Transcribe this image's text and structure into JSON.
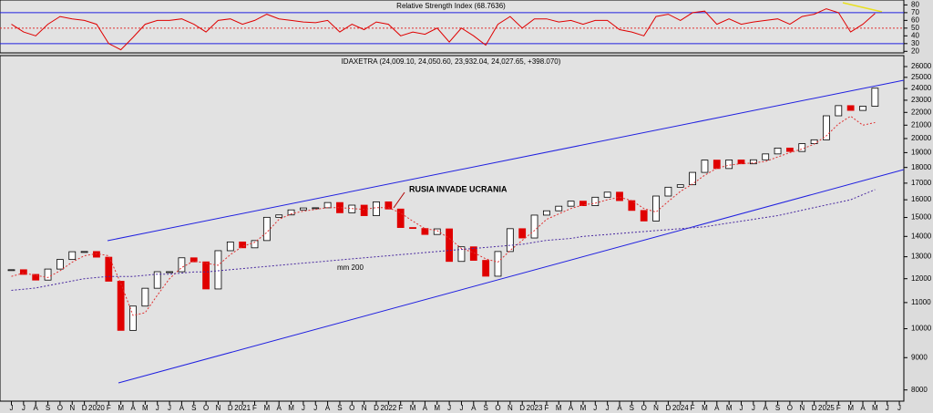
{
  "chart_data": [
    {
      "type": "line",
      "title": "Relative Strength Index (68.7636)",
      "ylim": [
        18,
        84
      ],
      "yticks": [
        20,
        30,
        40,
        50,
        60,
        70,
        80
      ],
      "levels": [
        {
          "value": 70,
          "color": "#2020e0"
        },
        {
          "value": 50,
          "color": "#e03030"
        },
        {
          "value": 30,
          "color": "#2020e0"
        }
      ],
      "series": [
        {
          "color": "#e00000",
          "values": [
            55,
            45,
            40,
            55,
            65,
            62,
            60,
            55,
            30,
            22,
            38,
            55,
            60,
            60,
            62,
            55,
            45,
            60,
            62,
            55,
            60,
            68,
            62,
            60,
            58,
            57,
            60,
            45,
            55,
            48,
            58,
            55,
            40,
            45,
            42,
            50,
            32,
            50,
            40,
            28,
            55,
            65,
            50,
            62,
            62,
            58,
            60,
            55,
            60,
            60,
            48,
            45,
            40,
            65,
            68,
            60,
            70,
            72,
            55,
            62,
            55,
            58,
            60,
            62,
            55,
            65,
            68,
            75,
            70,
            45,
            55,
            69,
            null,
            null
          ]
        }
      ]
    },
    {
      "type": "candlestick",
      "title": "IDAXETRA (24,009.10, 24,050.60, 23,932.04, 24,027.65, +398.070)",
      "categories": [
        "J",
        "J",
        "A",
        "S",
        "O",
        "N",
        "D",
        "2020",
        "F",
        "M",
        "A",
        "M",
        "J",
        "J",
        "A",
        "S",
        "O",
        "N",
        "D",
        "2021",
        "F",
        "M",
        "A",
        "M",
        "J",
        "J",
        "A",
        "S",
        "O",
        "N",
        "D",
        "2022",
        "F",
        "M",
        "A",
        "M",
        "J",
        "J",
        "A",
        "S",
        "O",
        "N",
        "D",
        "2023",
        "F",
        "M",
        "A",
        "M",
        "J",
        "J",
        "A",
        "S",
        "O",
        "N",
        "D",
        "2024",
        "F",
        "M",
        "A",
        "M",
        "J",
        "J",
        "A",
        "S",
        "O",
        "N",
        "D",
        "2025",
        "F",
        "M",
        "A",
        "M",
        "J",
        "J"
      ],
      "log_scale": true,
      "ylim": [
        7680,
        26970
      ],
      "yticks": [
        8000,
        9000,
        10000,
        11000,
        12000,
        13000,
        14000,
        15000,
        16000,
        17000,
        18000,
        19000,
        20000,
        21000,
        22000,
        23000,
        24000,
        25000,
        26000
      ],
      "series": [
        {
          "color": "#000000",
          "down_color": "#e00000",
          "values": [
            12400,
            12190,
            11940,
            12430,
            12870,
            13240,
            13250,
            12980,
            11890,
            9940,
            10860,
            11590,
            12310,
            12310,
            12950,
            12760,
            11560,
            13290,
            13720,
            13430,
            13790,
            15010,
            15140,
            15420,
            15530,
            15540,
            15840,
            15260,
            15690,
            15100,
            15880,
            15470,
            14460,
            14410,
            14100,
            14390,
            12780,
            13480,
            12830,
            12110,
            13250,
            14400,
            13920,
            15130,
            15370,
            15630,
            15920,
            15660,
            16150,
            16450,
            15950,
            15390,
            14810,
            16220,
            16750,
            16900,
            17680,
            18490,
            17930,
            18500,
            18240,
            18510,
            18910,
            19320,
            19080,
            19630,
            19910,
            21730,
            22550,
            22160,
            22500,
            24030,
            null,
            null
          ]
        },
        {
          "color": "#e03030",
          "style": "dotted",
          "values": [
            12100,
            12250,
            12150,
            12050,
            12350,
            12750,
            13050,
            13150,
            13050,
            11800,
            10500,
            10600,
            11300,
            12000,
            12500,
            12800,
            12700,
            12600,
            13100,
            13500,
            13700,
            14200,
            14900,
            15200,
            15350,
            15450,
            15550,
            15550,
            15500,
            15450,
            15550,
            15550,
            15250,
            14800,
            14400,
            14300,
            13900,
            13400,
            13200,
            12900,
            12750,
            13300,
            13800,
            14300,
            14900,
            15200,
            15500,
            15700,
            15800,
            16000,
            16150,
            15950,
            15500,
            15300,
            15900,
            16500,
            16950,
            17500,
            17950,
            18150,
            18250,
            18300,
            18400,
            18700,
            19000,
            19250,
            19600,
            20200,
            21100,
            21700,
            21000,
            21200,
            null,
            null
          ]
        },
        {
          "name": "mm 200",
          "color": "#4a2aa0",
          "style": "dotted",
          "values": [
            11500,
            11550,
            11600,
            11700,
            11800,
            11900,
            12000,
            12050,
            12100,
            12100,
            12100,
            12150,
            12200,
            12200,
            12250,
            12300,
            12300,
            12350,
            12400,
            12450,
            12500,
            12550,
            12600,
            12650,
            12700,
            12750,
            12800,
            12850,
            12900,
            12950,
            13000,
            13050,
            13100,
            13150,
            13200,
            13250,
            13300,
            13350,
            13400,
            13450,
            13500,
            13550,
            13600,
            13700,
            13800,
            13850,
            13900,
            14000,
            14050,
            14100,
            14150,
            14200,
            14250,
            14300,
            14350,
            14400,
            14450,
            14500,
            14600,
            14700,
            14800,
            14900,
            15000,
            15100,
            15250,
            15400,
            15550,
            15700,
            15850,
            16000,
            16300,
            16600,
            null,
            null
          ]
        }
      ],
      "annotations": [
        {
          "text": "RUSIA INVADE UCRANIA",
          "color": "#b00000"
        }
      ]
    }
  ]
}
